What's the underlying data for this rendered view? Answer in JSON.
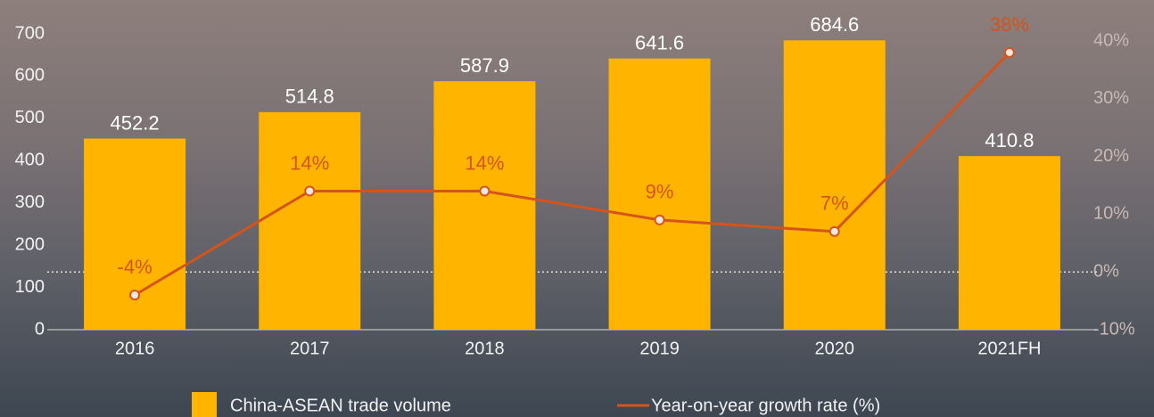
{
  "chart_data": {
    "type": "bar",
    "categories": [
      "2016",
      "2017",
      "2018",
      "2019",
      "2020",
      "2021FH"
    ],
    "series": [
      {
        "name": "China-ASEAN trade volume",
        "type": "bar",
        "color": "#ffb400",
        "values": [
          452.2,
          514.8,
          587.9,
          641.6,
          684.6,
          410.8
        ]
      },
      {
        "name": "Year-on-year growth rate (%)",
        "type": "line",
        "axis": "y2",
        "color": "#d4541b",
        "values": [
          -4,
          14,
          14,
          9,
          7,
          38
        ],
        "value_labels": [
          "-4%",
          "14%",
          "14%",
          "9%",
          "7%",
          "38%"
        ]
      }
    ],
    "ylim": [
      0,
      700
    ],
    "yticks": [
      0,
      100,
      200,
      300,
      400,
      500,
      600,
      700
    ],
    "y2lim": [
      -10,
      40
    ],
    "y2ticks": [
      {
        "value": -10,
        "label": "-10%"
      },
      {
        "value": 0,
        "label": "0%"
      },
      {
        "value": 10,
        "label": "10%"
      },
      {
        "value": 20,
        "label": "20%"
      },
      {
        "value": 30,
        "label": "30%"
      },
      {
        "value": 40,
        "label": "40%"
      }
    ]
  }
}
